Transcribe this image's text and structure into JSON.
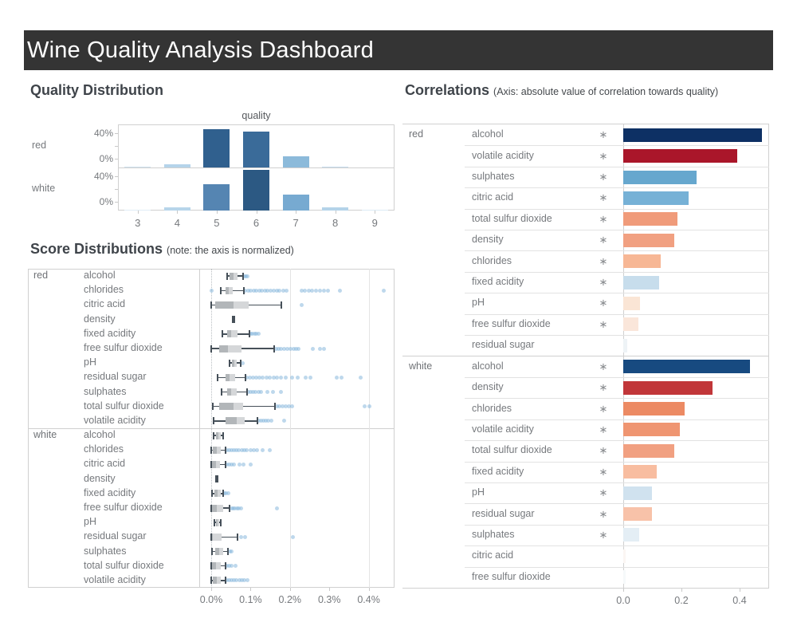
{
  "header": {
    "title": "Wine Quality Analysis Dashboard",
    "bg_color": "#343434",
    "fg_color": "#ffffff"
  },
  "sections": {
    "quality": {
      "title": "Quality Distribution"
    },
    "scores": {
      "title": "Score Distributions",
      "subtitle": "(note: the axis is normalized)"
    },
    "correlations": {
      "title": "Correlations",
      "subtitle": "(Axis: absolute value of correlation towards quality)"
    }
  },
  "chart_data": [
    {
      "id": "quality_distribution",
      "type": "bar",
      "title": "quality",
      "categories": [
        "3",
        "4",
        "5",
        "6",
        "7",
        "8",
        "9"
      ],
      "row_labels": [
        "red",
        "white"
      ],
      "y_ticks": [
        "40%",
        "0%"
      ],
      "ylim": [
        0,
        47
      ],
      "y_unit": "percent of wines",
      "series": [
        {
          "name": "red",
          "values": [
            0.6,
            3.3,
            42.6,
            39.9,
            12.4,
            1.1,
            0
          ],
          "colors": [
            "#cfe2f0",
            "#b5d4ea",
            "#30608e",
            "#3a6b99",
            "#8cbada",
            "#c6ddee",
            null
          ]
        },
        {
          "name": "white",
          "values": [
            0.4,
            3.3,
            29.7,
            44.9,
            18.0,
            3.6,
            0.1
          ],
          "colors": [
            "#e0edf6",
            "#b7d5ea",
            "#5585b2",
            "#2c5983",
            "#77aad1",
            "#b4d3e9",
            "#dcebf5"
          ]
        }
      ],
      "grid": false,
      "legend": false
    },
    {
      "id": "score_distributions",
      "type": "boxplot",
      "x_ticks": [
        "0.0%",
        "0.1%",
        "0.2%",
        "0.3%",
        "0.4%"
      ],
      "x_tick_values": [
        0.0,
        0.1,
        0.2,
        0.3,
        0.4
      ],
      "xlim": [
        0,
        0.465
      ],
      "gridline_values": [
        0.2,
        0.4
      ],
      "zero_line": "dotted",
      "groups": [
        {
          "name": "red",
          "rows": [
            {
              "label": "alcohol",
              "whisker_min": 0.04,
              "q1": 0.047,
              "median": 0.057,
              "q3": 0.067,
              "whisker_max": 0.081,
              "dots": [
                0.085,
                0.089,
                0.093
              ]
            },
            {
              "label": "chlorides",
              "whisker_min": 0.024,
              "q1": 0.036,
              "median": 0.045,
              "q3": 0.055,
              "whisker_max": 0.083,
              "dots": [
                0.002,
                0.087,
                0.094,
                0.101,
                0.108,
                0.115,
                0.122,
                0.129,
                0.136,
                0.143,
                0.15,
                0.158,
                0.166,
                0.174,
                0.183,
                0.192,
                0.229,
                0.238,
                0.247,
                0.257,
                0.266,
                0.276,
                0.287,
                0.297,
                0.327,
                0.439
              ]
            },
            {
              "label": "citric acid",
              "whisker_min": 0.0,
              "q1": 0.01,
              "median": 0.057,
              "q3": 0.095,
              "whisker_max": 0.178,
              "dots": [
                0.229
              ]
            },
            {
              "label": "density",
              "whisker_min": 0.055,
              "q1": 0.056,
              "median": 0.057,
              "q3": 0.058,
              "whisker_max": 0.059,
              "dots": []
            },
            {
              "label": "fixed acidity",
              "whisker_min": 0.028,
              "q1": 0.04,
              "median": 0.051,
              "q3": 0.067,
              "whisker_max": 0.097,
              "dots": [
                0.101,
                0.105,
                0.11,
                0.115,
                0.12
              ]
            },
            {
              "label": "free sulfur dioxide",
              "whisker_min": 0.0,
              "q1": 0.02,
              "median": 0.043,
              "q3": 0.077,
              "whisker_max": 0.16,
              "dots": [
                0.164,
                0.171,
                0.178,
                0.185,
                0.193,
                0.201,
                0.209,
                0.216,
                0.222,
                0.259,
                0.277,
                0.287
              ]
            },
            {
              "label": "pH",
              "whisker_min": 0.047,
              "q1": 0.053,
              "median": 0.059,
              "q3": 0.065,
              "whisker_max": 0.075,
              "dots": [
                0.079
              ]
            },
            {
              "label": "residual sugar",
              "whisker_min": 0.016,
              "q1": 0.036,
              "median": 0.047,
              "q3": 0.061,
              "whisker_max": 0.087,
              "dots": [
                0.091,
                0.099,
                0.107,
                0.115,
                0.123,
                0.131,
                0.14,
                0.149,
                0.158,
                0.168,
                0.178,
                0.19,
                0.205,
                0.22,
                0.239,
                0.253,
                0.318,
                0.33,
                0.38
              ]
            },
            {
              "label": "sulphates",
              "whisker_min": 0.026,
              "q1": 0.04,
              "median": 0.051,
              "q3": 0.065,
              "whisker_max": 0.091,
              "dots": [
                0.095,
                0.101,
                0.107,
                0.113,
                0.12,
                0.127,
                0.142,
                0.157,
                0.178
              ]
            },
            {
              "label": "total sulfur dioxide",
              "whisker_min": 0.004,
              "q1": 0.02,
              "median": 0.057,
              "q3": 0.081,
              "whisker_max": 0.162,
              "dots": [
                0.166,
                0.173,
                0.181,
                0.189,
                0.197,
                0.206,
                0.389,
                0.401
              ]
            },
            {
              "label": "volatile acidity",
              "whisker_min": 0.006,
              "q1": 0.036,
              "median": 0.065,
              "q3": 0.085,
              "whisker_max": 0.117,
              "dots": [
                0.121,
                0.127,
                0.133,
                0.139,
                0.145,
                0.152,
                0.186
              ]
            }
          ]
        },
        {
          "name": "white",
          "rows": [
            {
              "label": "alcohol",
              "whisker_min": 0.006,
              "q1": 0.012,
              "median": 0.018,
              "q3": 0.024,
              "whisker_max": 0.03,
              "dots": []
            },
            {
              "label": "chlorides",
              "whisker_min": 0.0,
              "q1": 0.004,
              "median": 0.014,
              "q3": 0.024,
              "whisker_max": 0.036,
              "dots": [
                0.04,
                0.046,
                0.052,
                0.058,
                0.064,
                0.07,
                0.077,
                0.084,
                0.091,
                0.101,
                0.109,
                0.117,
                0.131,
                0.148
              ]
            },
            {
              "label": "citric acid",
              "whisker_min": 0.0,
              "q1": 0.002,
              "median": 0.012,
              "q3": 0.022,
              "whisker_max": 0.036,
              "dots": [
                0.04,
                0.045,
                0.051,
                0.057,
                0.071,
                0.081,
                0.101
              ]
            },
            {
              "label": "density",
              "whisker_min": 0.012,
              "q1": 0.013,
              "median": 0.014,
              "q3": 0.015,
              "whisker_max": 0.016,
              "dots": []
            },
            {
              "label": "fixed acidity",
              "whisker_min": 0.002,
              "q1": 0.008,
              "median": 0.016,
              "q3": 0.024,
              "whisker_max": 0.03,
              "dots": [
                0.034,
                0.038,
                0.044
              ]
            },
            {
              "label": "free sulfur dioxide",
              "whisker_min": 0.0,
              "q1": 0.002,
              "median": 0.014,
              "q3": 0.03,
              "whisker_max": 0.047,
              "dots": [
                0.051,
                0.055,
                0.06,
                0.065,
                0.07,
                0.076,
                0.166
              ]
            },
            {
              "label": "pH",
              "whisker_min": 0.008,
              "q1": 0.012,
              "median": 0.016,
              "q3": 0.02,
              "whisker_max": 0.024,
              "dots": []
            },
            {
              "label": "residual sugar",
              "whisker_min": 0.0,
              "q1": 0.001,
              "median": 0.005,
              "q3": 0.026,
              "whisker_max": 0.067,
              "dots": [
                0.075,
                0.087,
                0.208
              ]
            },
            {
              "label": "sulphates",
              "whisker_min": 0.002,
              "q1": 0.01,
              "median": 0.02,
              "q3": 0.03,
              "whisker_max": 0.043,
              "dots": [
                0.047,
                0.051
              ]
            },
            {
              "label": "total sulfur dioxide",
              "whisker_min": 0.0,
              "q1": 0.002,
              "median": 0.012,
              "q3": 0.024,
              "whisker_max": 0.036,
              "dots": [
                0.04,
                0.045,
                0.051,
                0.061
              ]
            },
            {
              "label": "volatile acidity",
              "whisker_min": 0.0,
              "q1": 0.004,
              "median": 0.014,
              "q3": 0.024,
              "whisker_max": 0.036,
              "dots": [
                0.04,
                0.046,
                0.052,
                0.058,
                0.064,
                0.071,
                0.078,
                0.085,
                0.092
              ]
            }
          ]
        }
      ]
    },
    {
      "id": "correlations",
      "type": "bar",
      "orientation": "horizontal",
      "x_ticks": [
        "0.0",
        "0.2",
        "0.4"
      ],
      "x_tick_values": [
        0.0,
        0.2,
        0.4
      ],
      "xlim": [
        0,
        0.5
      ],
      "sig_marker": "∗",
      "groups": [
        {
          "name": "red",
          "rows": [
            {
              "label": "alcohol",
              "value": 0.476,
              "significant": true,
              "color": "#0d3064"
            },
            {
              "label": "volatile acidity",
              "value": 0.391,
              "significant": true,
              "color": "#aa162a"
            },
            {
              "label": "sulphates",
              "value": 0.251,
              "significant": true,
              "color": "#66a7ce"
            },
            {
              "label": "citric acid",
              "value": 0.226,
              "significant": true,
              "color": "#76b1d6"
            },
            {
              "label": "total sulfur dioxide",
              "value": 0.185,
              "significant": true,
              "color": "#f09b7a"
            },
            {
              "label": "density",
              "value": 0.175,
              "significant": true,
              "color": "#f1a081"
            },
            {
              "label": "chlorides",
              "value": 0.129,
              "significant": true,
              "color": "#f7b795"
            },
            {
              "label": "fixed acidity",
              "value": 0.124,
              "significant": true,
              "color": "#c7ddec"
            },
            {
              "label": "pH",
              "value": 0.058,
              "significant": true,
              "color": "#fae5d5"
            },
            {
              "label": "free sulfur dioxide",
              "value": 0.051,
              "significant": true,
              "color": "#fae6da"
            },
            {
              "label": "residual sugar",
              "value": 0.014,
              "significant": false,
              "color": "#eef3f6"
            }
          ]
        },
        {
          "name": "white",
          "rows": [
            {
              "label": "alcohol",
              "value": 0.436,
              "significant": true,
              "color": "#174a80"
            },
            {
              "label": "density",
              "value": 0.307,
              "significant": true,
              "color": "#c13639"
            },
            {
              "label": "chlorides",
              "value": 0.21,
              "significant": true,
              "color": "#ec8a63"
            },
            {
              "label": "volatile acidity",
              "value": 0.195,
              "significant": true,
              "color": "#ef9571"
            },
            {
              "label": "total sulfur dioxide",
              "value": 0.175,
              "significant": true,
              "color": "#f1a081"
            },
            {
              "label": "fixed acidity",
              "value": 0.114,
              "significant": true,
              "color": "#f8bda0"
            },
            {
              "label": "pH",
              "value": 0.099,
              "significant": true,
              "color": "#d0e2ef"
            },
            {
              "label": "residual sugar",
              "value": 0.098,
              "significant": true,
              "color": "#f8c2a9"
            },
            {
              "label": "sulphates",
              "value": 0.054,
              "significant": true,
              "color": "#e4eef5"
            },
            {
              "label": "citric acid",
              "value": 0.009,
              "significant": false,
              "color": "#fbf6f3"
            },
            {
              "label": "free sulfur dioxide",
              "value": 0.008,
              "significant": false,
              "color": "#f6f9fa"
            }
          ]
        }
      ]
    }
  ]
}
